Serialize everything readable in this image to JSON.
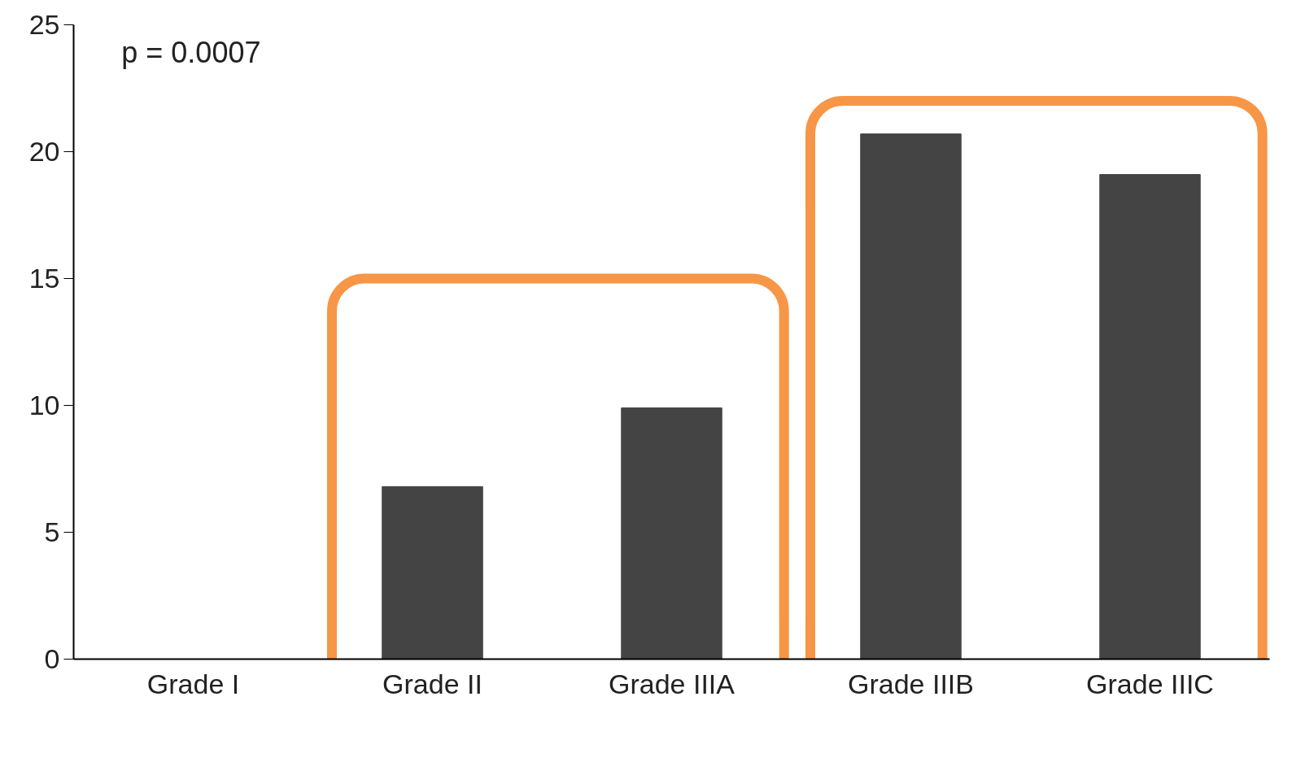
{
  "chart_data": {
    "type": "bar",
    "categories": [
      "Grade I",
      "Grade II",
      "Grade IIIA",
      "Grade IIIB",
      "Grade IIIC"
    ],
    "values": [
      0,
      6.8,
      9.9,
      20.7,
      19.1
    ],
    "color": "#444444",
    "ylim": [
      0,
      25
    ],
    "yticks": [
      0,
      5,
      10,
      15,
      20,
      25
    ],
    "grid": false,
    "annotations": [
      "p = 0.0007"
    ]
  }
}
